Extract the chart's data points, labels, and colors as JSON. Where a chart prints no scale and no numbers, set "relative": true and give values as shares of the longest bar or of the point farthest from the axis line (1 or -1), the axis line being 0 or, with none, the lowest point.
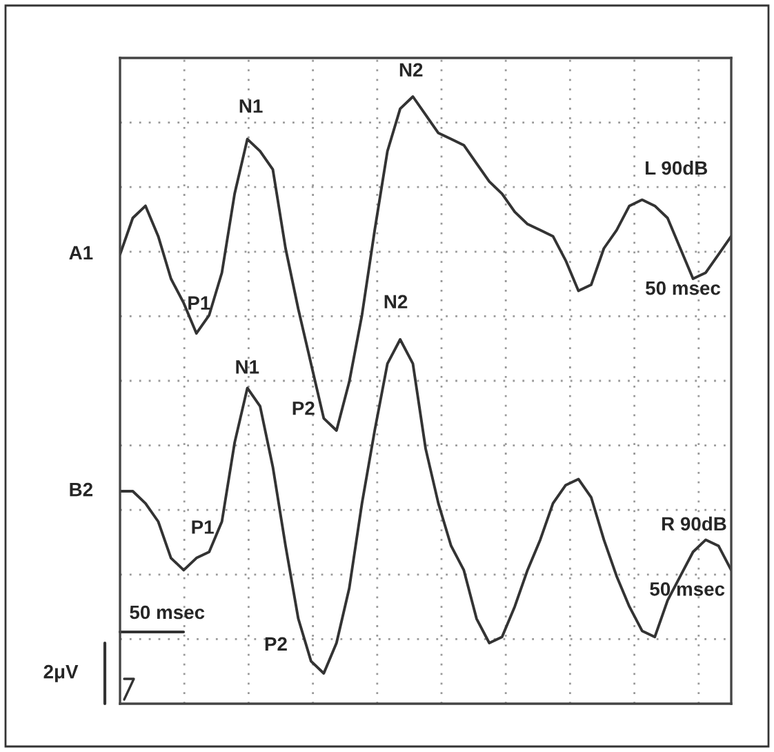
{
  "chart_data": {
    "type": "line",
    "relative": true,
    "grid": true,
    "legend": false,
    "marker": "none",
    "line_style": "solid",
    "categories": [
      null,
      null,
      null,
      null,
      null,
      null,
      null,
      null,
      null,
      null,
      null,
      null,
      null,
      null,
      null,
      null,
      null,
      null,
      null,
      null,
      null,
      null,
      null,
      null,
      null,
      null,
      null,
      null,
      null,
      null,
      null,
      null,
      null,
      null,
      null,
      null,
      null,
      null,
      null,
      null,
      null,
      null,
      null,
      null,
      null,
      null,
      null,
      null,
      null
    ],
    "series": [
      {
        "name": "A1",
        "color": "#333333",
        "values": [
          0.74,
          0.8,
          0.82,
          0.77,
          0.7,
          0.66,
          0.61,
          0.64,
          0.71,
          0.84,
          0.93,
          0.91,
          0.88,
          0.75,
          0.65,
          0.56,
          0.47,
          0.45,
          0.53,
          0.64,
          0.78,
          0.91,
          0.98,
          1,
          0.97,
          0.94,
          0.93,
          0.92,
          0.89,
          0.86,
          0.84,
          0.81,
          0.79,
          0.78,
          0.77,
          0.73,
          0.68,
          0.69,
          0.75,
          0.78,
          0.82,
          0.83,
          0.82,
          0.8,
          0.75,
          0.7,
          0.71,
          0.74,
          0.77
        ]
      },
      {
        "name": "B2",
        "color": "#333333",
        "values": [
          0.35,
          0.35,
          0.33,
          0.3,
          0.24,
          0.22,
          0.24,
          0.25,
          0.3,
          0.43,
          0.52,
          0.49,
          0.39,
          0.26,
          0.14,
          0.07,
          0.05,
          0.1,
          0.19,
          0.33,
          0.45,
          0.56,
          0.6,
          0.56,
          0.42,
          0.33,
          0.26,
          0.22,
          0.14,
          0.1,
          0.11,
          0.16,
          0.22,
          0.27,
          0.33,
          0.36,
          0.37,
          0.34,
          0.27,
          0.21,
          0.16,
          0.12,
          0.11,
          0.17,
          0.21,
          0.25,
          0.27,
          0.26,
          0.22
        ]
      }
    ],
    "annotations": [
      "N1",
      "N2",
      "P1",
      "L 90dB",
      "50 msec",
      "N1",
      "P2",
      "N2",
      "P1",
      "R 90dB",
      "50 msec",
      "P2",
      "50 msec",
      "2μV"
    ]
  }
}
